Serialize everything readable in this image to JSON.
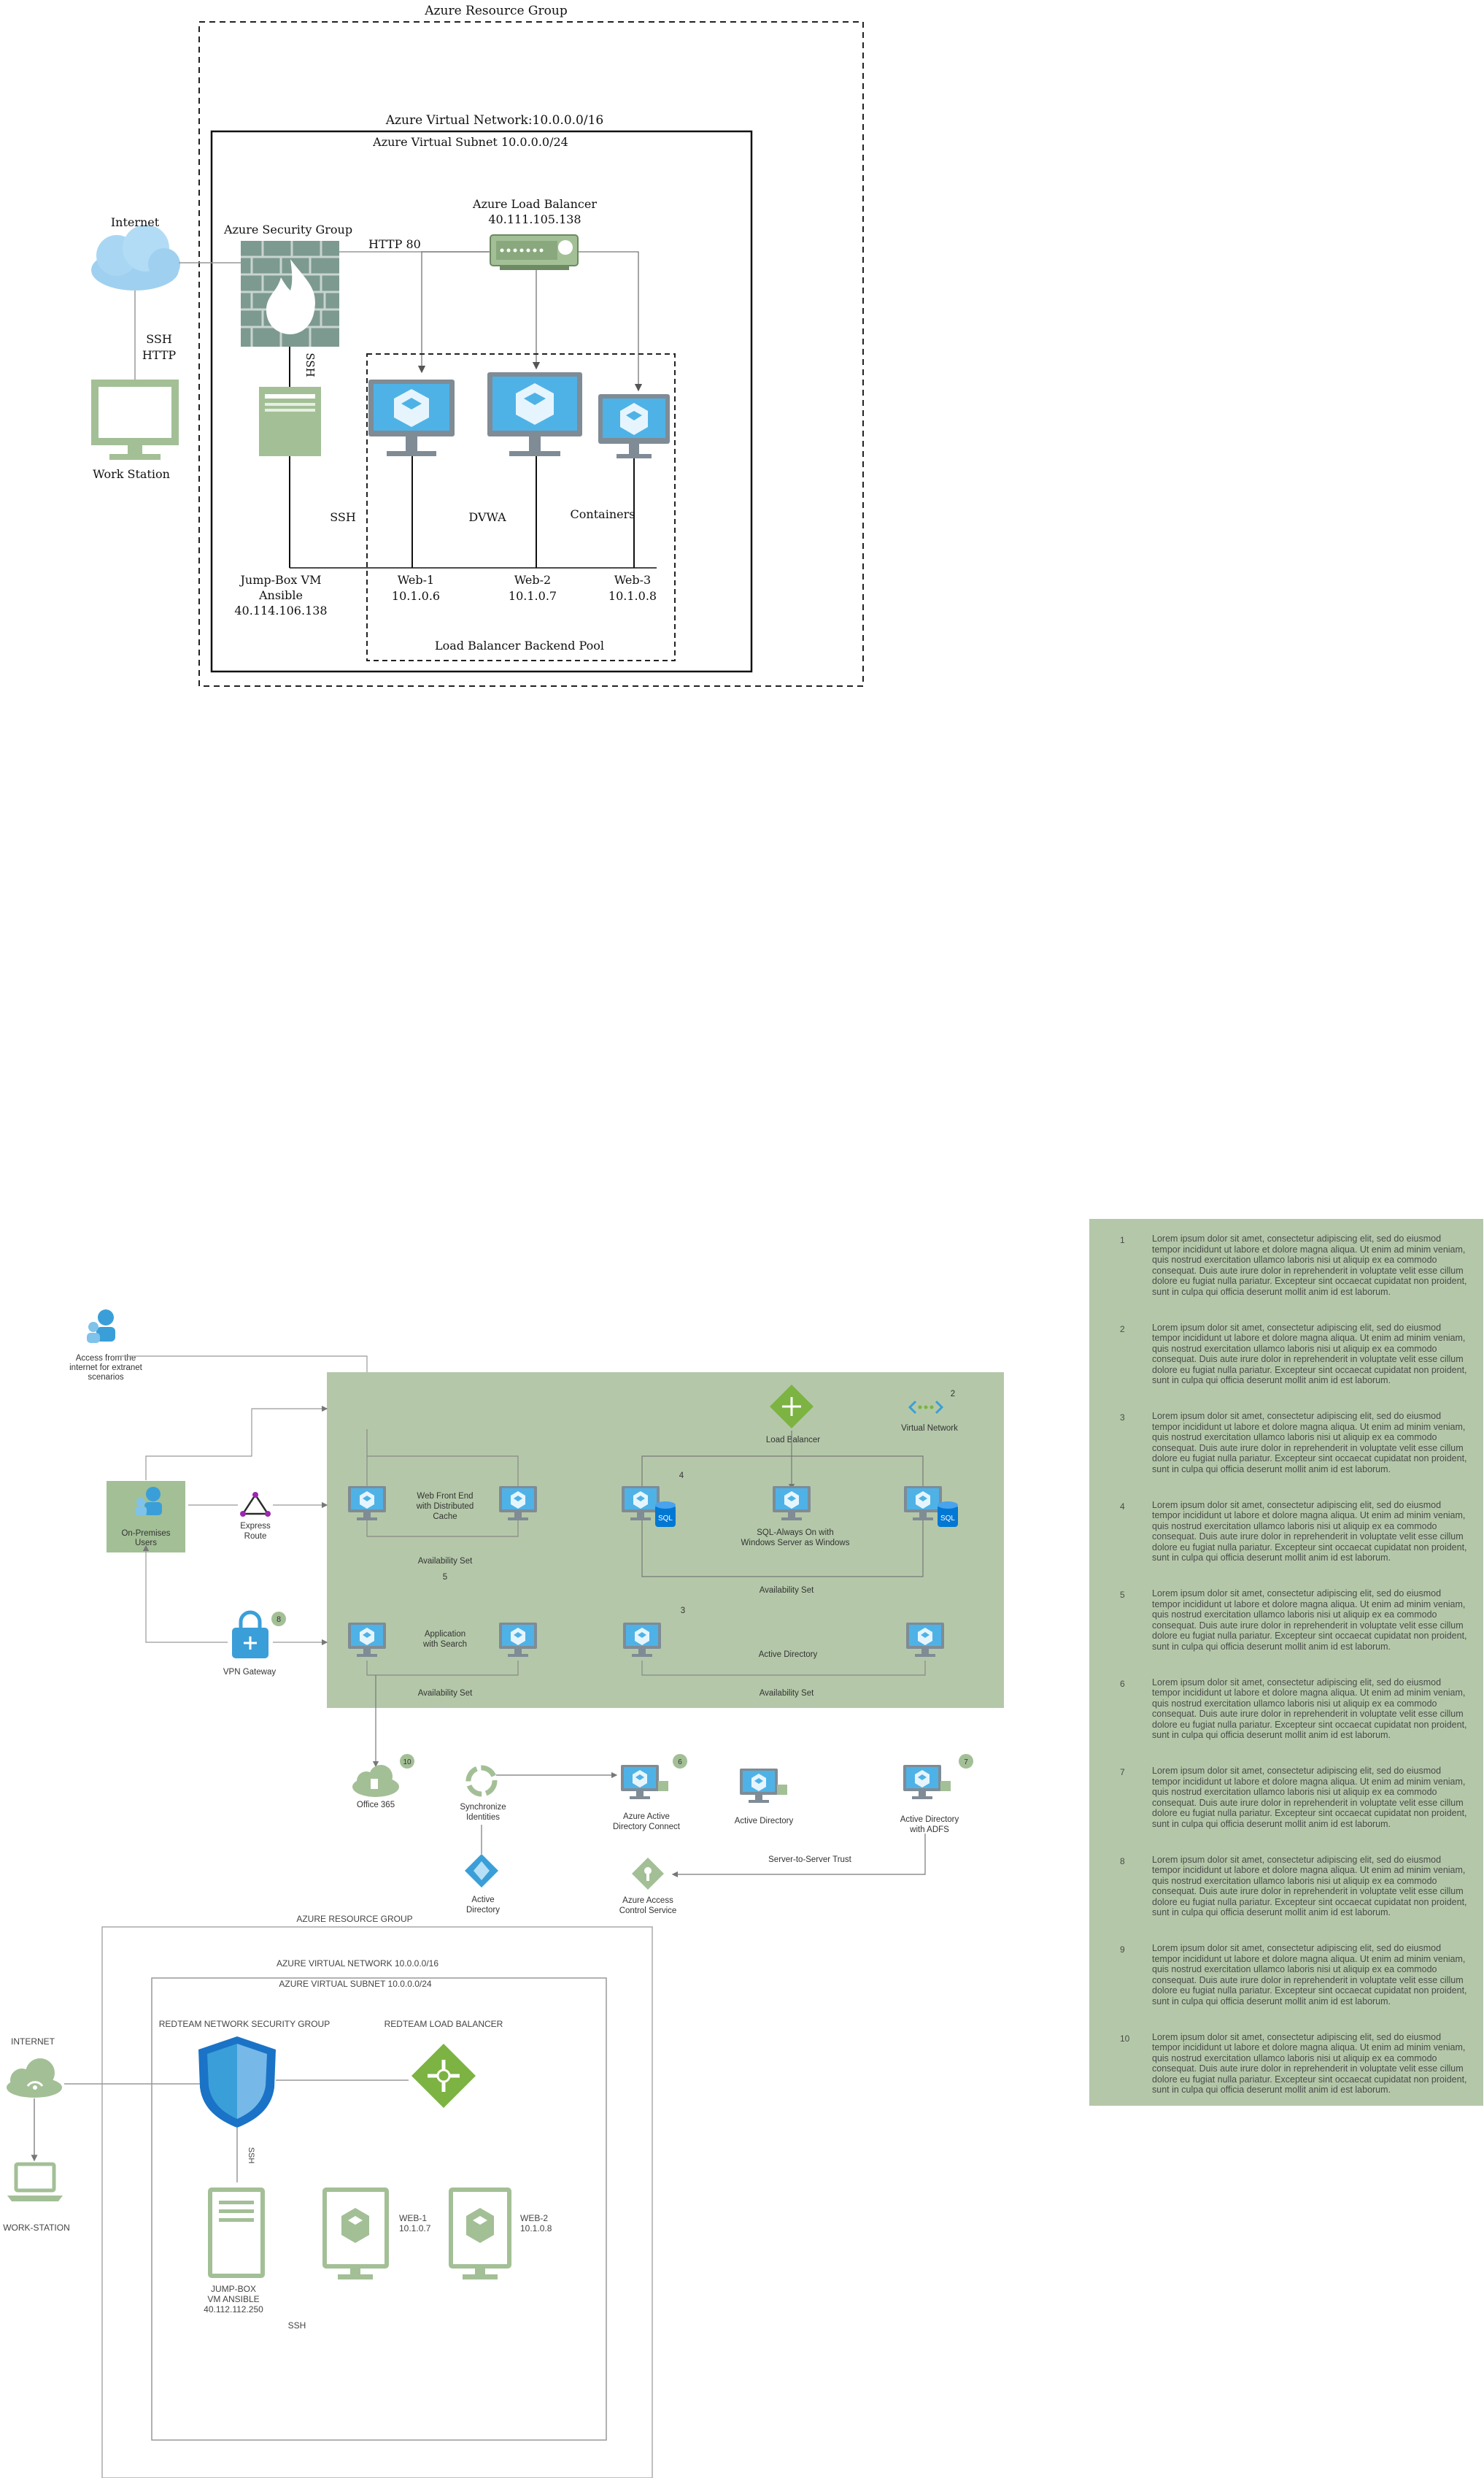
{
  "diagram1": {
    "resource_group": "Azure Resource Group",
    "vnet": "Azure Virtual Network:10.0.0.0/16",
    "subnet": "Azure Virtual Subnet 10.0.0.0/24",
    "internet": "Internet",
    "workstation": "Work Station",
    "ssh_http_1": "SSH",
    "ssh_http_2": "HTTP",
    "security_group": "Azure Security Group",
    "http80": "HTTP 80",
    "lb_title": "Azure Load Balancer",
    "lb_ip": "40.111.105.138",
    "ssh_vertical": "SSH",
    "ssh_label": "SSH",
    "dvwa": "DVWA",
    "containers": "Containers",
    "jumpbox_line1": "Jump-Box VM",
    "jumpbox_line2": "Ansible",
    "jumpbox_ip": "40.114.106.138",
    "web1": "Web-1",
    "web1_ip": "10.1.0.6",
    "web2": "Web-2",
    "web2_ip": "10.1.0.7",
    "web3": "Web-3",
    "web3_ip": "10.1.0.8",
    "backend_pool": "Load Balancer Backend Pool"
  },
  "diagram2": {
    "access_internet_1": "Access from the",
    "access_internet_2": "internet for extranet",
    "access_internet_3": "scenarios",
    "on_prem_1": "On-Premises",
    "on_prem_2": "Users",
    "express_1": "Express",
    "express_2": "Route",
    "vpn": "VPN Gateway",
    "load_balancer": "Load Balancer",
    "virtual_network": "Virtual Network",
    "web_front_1": "Web Front End",
    "web_front_2": "with Distributed",
    "web_front_3": "Cache",
    "sql_1": "SQL-Always On with",
    "sql_2": "Windows Server as Windows",
    "app_1": "Application",
    "app_2": "with Search",
    "active_directory_center": "Active Directory",
    "availability_set": "Availability Set",
    "sql_badge": "SQL",
    "n2": "2",
    "n3": "3",
    "n4": "4",
    "n5": "5",
    "n6": "6",
    "n7": "7",
    "n8": "8",
    "n10": "10",
    "office365": "Office 365",
    "sync_1": "Synchronize",
    "sync_2": "Identities",
    "aad_connect_1": "Azure Active",
    "aad_connect_2": "Directory Connect",
    "active_directory": "Active Directory",
    "ad_adfs_1": "Active Directory",
    "ad_adfs_2": "with ADFS",
    "ad_diamond_1": "Active",
    "ad_diamond_2": "Directory",
    "acs_1": "Azure Access",
    "acs_2": "Control Service",
    "s2s": "Server-to-Server Trust"
  },
  "diagram3": {
    "resource_group": "AZURE RESOURCE GROUP",
    "vnet": "AZURE VIRTUAL NETWORK 10.0.0.0/16",
    "subnet": "AZURE VIRTUAL SUBNET 10.0.0.0/24",
    "internet": "INTERNET",
    "workstation": "WORK-STATION",
    "nsg": "REDTEAM NETWORK SECURITY GROUP",
    "lb": "REDTEAM LOAD BALANCER",
    "ssh_vertical": "SSH",
    "jumpbox_1": "JUMP-BOX",
    "jumpbox_2": "VM ANSIBLE",
    "jumpbox_3": "40.112.112.250",
    "ssh": "SSH",
    "web1": "WEB-1",
    "web1_ip": "10.1.0.7",
    "web2": "WEB-2",
    "web2_ip": "10.1.0.8"
  },
  "legend": [
    {
      "num": "1",
      "text": "Lorem ipsum dolor sit amet, consectetur adipiscing elit, sed do eiusmod tempor incididunt ut labore et dolore magna aliqua. Ut enim ad minim veniam, quis nostrud exercitation ullamco laboris nisi ut aliquip ex ea commodo consequat. Duis aute irure dolor in reprehenderit in voluptate velit esse cillum dolore eu fugiat nulla pariatur. Excepteur sint occaecat cupidatat non proident, sunt in culpa qui officia deserunt mollit anim id est laborum."
    },
    {
      "num": "2",
      "text": "Lorem ipsum dolor sit amet, consectetur adipiscing elit, sed do eiusmod tempor incididunt ut labore et dolore magna aliqua. Ut enim ad minim veniam, quis nostrud exercitation ullamco laboris nisi ut aliquip ex ea commodo consequat. Duis aute irure dolor in reprehenderit in voluptate velit esse cillum dolore eu fugiat nulla pariatur. Excepteur sint occaecat cupidatat non proident, sunt in culpa qui officia deserunt mollit anim id est laborum."
    },
    {
      "num": "3",
      "text": "Lorem ipsum dolor sit amet, consectetur adipiscing elit, sed do eiusmod tempor incididunt ut labore et dolore magna aliqua. Ut enim ad minim veniam, quis nostrud exercitation ullamco laboris nisi ut aliquip ex ea commodo consequat. Duis aute irure dolor in reprehenderit in voluptate velit esse cillum dolore eu fugiat nulla pariatur. Excepteur sint occaecat cupidatat non proident, sunt in culpa qui officia deserunt mollit anim id est laborum."
    },
    {
      "num": "4",
      "text": "Lorem ipsum dolor sit amet, consectetur adipiscing elit, sed do eiusmod tempor incididunt ut labore et dolore magna aliqua. Ut enim ad minim veniam, quis nostrud exercitation ullamco laboris nisi ut aliquip ex ea commodo consequat. Duis aute irure dolor in reprehenderit in voluptate velit esse cillum dolore eu fugiat nulla pariatur. Excepteur sint occaecat cupidatat non proident, sunt in culpa qui officia deserunt mollit anim id est laborum."
    },
    {
      "num": "5",
      "text": "Lorem ipsum dolor sit amet, consectetur adipiscing elit, sed do eiusmod tempor incididunt ut labore et dolore magna aliqua. Ut enim ad minim veniam, quis nostrud exercitation ullamco laboris nisi ut aliquip ex ea commodo consequat. Duis aute irure dolor in reprehenderit in voluptate velit esse cillum dolore eu fugiat nulla pariatur. Excepteur sint occaecat cupidatat non proident, sunt in culpa qui officia deserunt mollit anim id est laborum."
    },
    {
      "num": "6",
      "text": "Lorem ipsum dolor sit amet, consectetur adipiscing elit, sed do eiusmod tempor incididunt ut labore et dolore magna aliqua. Ut enim ad minim veniam, quis nostrud exercitation ullamco laboris nisi ut aliquip ex ea commodo consequat. Duis aute irure dolor in reprehenderit in voluptate velit esse cillum dolore eu fugiat nulla pariatur. Excepteur sint occaecat cupidatat non proident, sunt in culpa qui officia deserunt mollit anim id est laborum."
    },
    {
      "num": "7",
      "text": "Lorem ipsum dolor sit amet, consectetur adipiscing elit, sed do eiusmod tempor incididunt ut labore et dolore magna aliqua. Ut enim ad minim veniam, quis nostrud exercitation ullamco laboris nisi ut aliquip ex ea commodo consequat. Duis aute irure dolor in reprehenderit in voluptate velit esse cillum dolore eu fugiat nulla pariatur. Excepteur sint occaecat cupidatat non proident, sunt in culpa qui officia deserunt mollit anim id est laborum."
    },
    {
      "num": "8",
      "text": "Lorem ipsum dolor sit amet, consectetur adipiscing elit, sed do eiusmod tempor incididunt ut labore et dolore magna aliqua. Ut enim ad minim veniam, quis nostrud exercitation ullamco laboris nisi ut aliquip ex ea commodo consequat. Duis aute irure dolor in reprehenderit in voluptate velit esse cillum dolore eu fugiat nulla pariatur. Excepteur sint occaecat cupidatat non proident, sunt in culpa qui officia deserunt mollit anim id est laborum."
    },
    {
      "num": "9",
      "text": "Lorem ipsum dolor sit amet, consectetur adipiscing elit, sed do eiusmod tempor incididunt ut labore et dolore magna aliqua. Ut enim ad minim veniam, quis nostrud exercitation ullamco laboris nisi ut aliquip ex ea commodo consequat. Duis aute irure dolor in reprehenderit in voluptate velit esse cillum dolore eu fugiat nulla pariatur. Excepteur sint occaecat cupidatat non proident, sunt in culpa qui officia deserunt mollit anim id est laborum."
    },
    {
      "num": "10",
      "text": "Lorem ipsum dolor sit amet, consectetur adipiscing elit, sed do eiusmod tempor incididunt ut labore et dolore magna aliqua. Ut enim ad minim veniam, quis nostrud exercitation ullamco laboris nisi ut aliquip ex ea commodo consequat. Duis aute irure dolor in reprehenderit in voluptate velit esse cillum dolore eu fugiat nulla pariatur. Excepteur sint occaecat cupidatat non proident, sunt in culpa qui officia deserunt mollit anim id est laborum."
    }
  ],
  "colors": {
    "green_panel": "#b4c8a9",
    "green_icon": "#a3bf96",
    "azure_blue": "#3a9fd8",
    "line_gray": "#999999"
  }
}
